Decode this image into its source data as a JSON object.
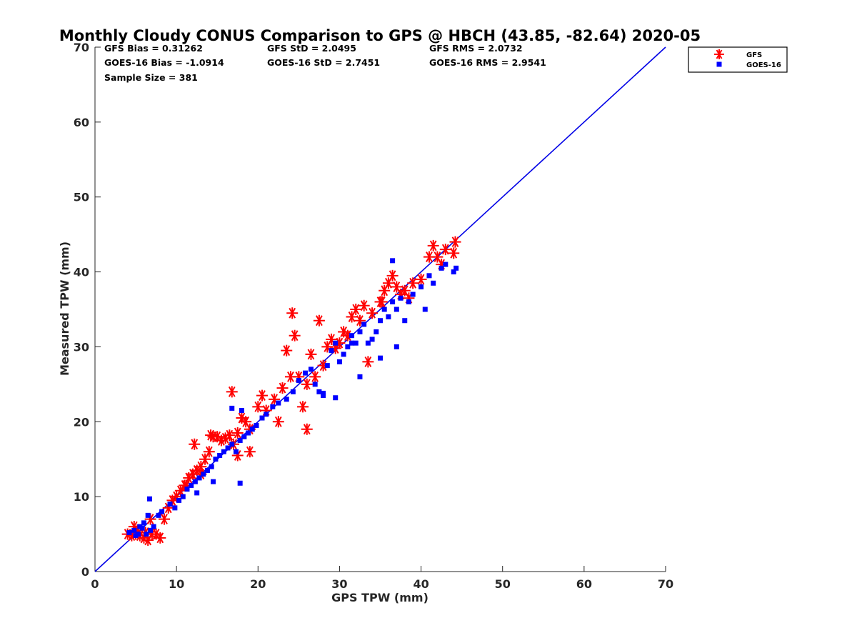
{
  "chart_data": {
    "type": "scatter",
    "title": "Monthly Cloudy CONUS Comparison to GPS @ HBCH (43.85, -82.64) 2020-05",
    "xlabel": "GPS TPW (mm)",
    "ylabel": "Measured TPW (mm)",
    "xlim": [
      0,
      70
    ],
    "ylim": [
      0,
      70
    ],
    "xticks": [
      0,
      10,
      20,
      30,
      40,
      50,
      60,
      70
    ],
    "yticks": [
      0,
      10,
      20,
      30,
      40,
      50,
      60,
      70
    ],
    "grid": false,
    "legend_position": "top-right-outside",
    "stats": [
      "GFS Bias = 0.31262",
      "GFS StD = 2.0495",
      "GFS RMS = 2.0732",
      "GOES-16 Bias = -1.0914",
      "GOES-16 StD = 2.7451",
      "GOES-16 RMS = 2.9541",
      "Sample Size = 381"
    ],
    "reference_line": {
      "x": [
        0,
        70
      ],
      "y": [
        0,
        70
      ],
      "color": "#0000e6"
    },
    "series": [
      {
        "name": "GFS",
        "marker": "asterisk",
        "color": "#ff0000",
        "x": [
          4.0,
          4.5,
          5.0,
          5.5,
          6.0,
          6.5,
          7.0,
          5.2,
          6.2,
          7.5,
          8.0,
          4.8,
          6.8,
          9.0,
          10.0,
          10.5,
          11.0,
          11.5,
          12.0,
          12.5,
          13.0,
          13.5,
          14.0,
          14.5,
          15.0,
          15.5,
          16.0,
          12.2,
          14.2,
          16.5,
          17.0,
          17.5,
          18.0,
          18.5,
          19.0,
          20.0,
          20.5,
          21.0,
          22.0,
          23.0,
          24.0,
          25.0,
          26.0,
          27.0,
          28.0,
          23.5,
          26.5,
          28.5,
          29.0,
          29.5,
          30.0,
          30.5,
          31.0,
          31.5,
          32.0,
          32.5,
          33.0,
          34.0,
          35.0,
          35.5,
          36.0,
          36.5,
          37.0,
          37.5,
          38.0,
          39.0,
          40.0,
          41.0,
          41.5,
          42.0,
          42.5,
          43.0,
          44.0,
          44.2,
          16.8,
          24.2,
          26.0,
          24.5,
          22.5,
          25.5,
          13.0,
          17.5,
          19.0,
          27.5,
          33.5,
          35.2,
          38.5,
          9.5,
          11.2,
          8.5
        ],
        "y": [
          5.0,
          4.8,
          5.0,
          4.8,
          4.5,
          4.2,
          5.0,
          5.5,
          5.2,
          5.0,
          4.5,
          6.0,
          7.0,
          8.5,
          10.0,
          10.8,
          11.5,
          12.5,
          13.0,
          13.5,
          14.0,
          15.0,
          16.0,
          18.0,
          18.0,
          17.5,
          17.8,
          17.0,
          18.2,
          18.2,
          17.0,
          18.5,
          20.5,
          20.0,
          19.0,
          22.0,
          23.5,
          21.5,
          23.0,
          24.5,
          26.0,
          26.0,
          25.0,
          26.0,
          27.5,
          29.5,
          29.0,
          30.0,
          31.0,
          29.8,
          30.5,
          32.0,
          31.5,
          34.0,
          35.0,
          33.5,
          35.5,
          34.5,
          36.0,
          37.5,
          38.5,
          39.5,
          38.0,
          37.0,
          37.5,
          38.5,
          39.0,
          42.0,
          43.5,
          42.0,
          41.0,
          43.0,
          42.5,
          44.0,
          24.0,
          34.5,
          19.0,
          31.5,
          20.0,
          22.0,
          13.0,
          15.5,
          16.0,
          33.5,
          28.0,
          36.0,
          36.5,
          9.5,
          11.5,
          7.0
        ]
      },
      {
        "name": "GOES-16",
        "marker": "square",
        "color": "#0000ff",
        "x": [
          4.2,
          4.8,
          5.3,
          5.8,
          6.3,
          6.8,
          7.2,
          5.0,
          6.0,
          7.8,
          8.2,
          5.5,
          6.5,
          9.2,
          9.8,
          10.3,
          10.8,
          11.3,
          11.8,
          12.3,
          12.8,
          13.3,
          13.8,
          14.3,
          14.8,
          15.3,
          15.8,
          16.3,
          16.8,
          17.3,
          17.8,
          18.3,
          18.8,
          19.3,
          19.8,
          20.5,
          21.0,
          21.8,
          22.5,
          23.5,
          24.3,
          25.0,
          25.8,
          26.5,
          27.0,
          27.5,
          28.0,
          28.5,
          29.0,
          29.5,
          30.0,
          30.5,
          31.0,
          31.5,
          32.0,
          32.5,
          33.0,
          33.5,
          34.0,
          34.5,
          35.0,
          35.5,
          36.0,
          36.5,
          37.0,
          37.5,
          38.0,
          38.5,
          39.0,
          40.0,
          41.0,
          42.5,
          43.0,
          44.0,
          44.3,
          17.8,
          18.0,
          16.8,
          28.0,
          29.5,
          31.5,
          32.5,
          35.0,
          36.5,
          37.0,
          40.5,
          41.5,
          6.7,
          12.5,
          14.5
        ],
        "y": [
          5.2,
          5.5,
          5.0,
          5.8,
          5.0,
          5.5,
          6.0,
          4.8,
          6.5,
          7.5,
          8.0,
          6.0,
          7.5,
          9.0,
          8.5,
          9.5,
          10.0,
          11.0,
          11.5,
          12.0,
          12.5,
          13.0,
          13.5,
          14.0,
          15.0,
          15.5,
          16.0,
          16.5,
          17.0,
          16.0,
          17.5,
          18.0,
          18.5,
          19.0,
          19.5,
          20.5,
          21.0,
          22.0,
          22.5,
          23.0,
          24.0,
          25.5,
          26.5,
          27.0,
          25.0,
          24.0,
          23.5,
          27.5,
          29.5,
          30.5,
          28.0,
          29.0,
          30.0,
          31.5,
          30.5,
          32.0,
          33.0,
          30.5,
          31.0,
          32.0,
          33.5,
          35.0,
          34.0,
          36.0,
          35.0,
          36.5,
          33.5,
          36.0,
          37.0,
          38.0,
          39.5,
          40.5,
          41.0,
          40.0,
          40.5,
          11.8,
          21.5,
          21.8,
          23.8,
          23.2,
          30.5,
          26.0,
          28.5,
          41.5,
          30.0,
          35.0,
          38.5,
          9.7,
          10.5,
          12.0
        ]
      }
    ]
  }
}
